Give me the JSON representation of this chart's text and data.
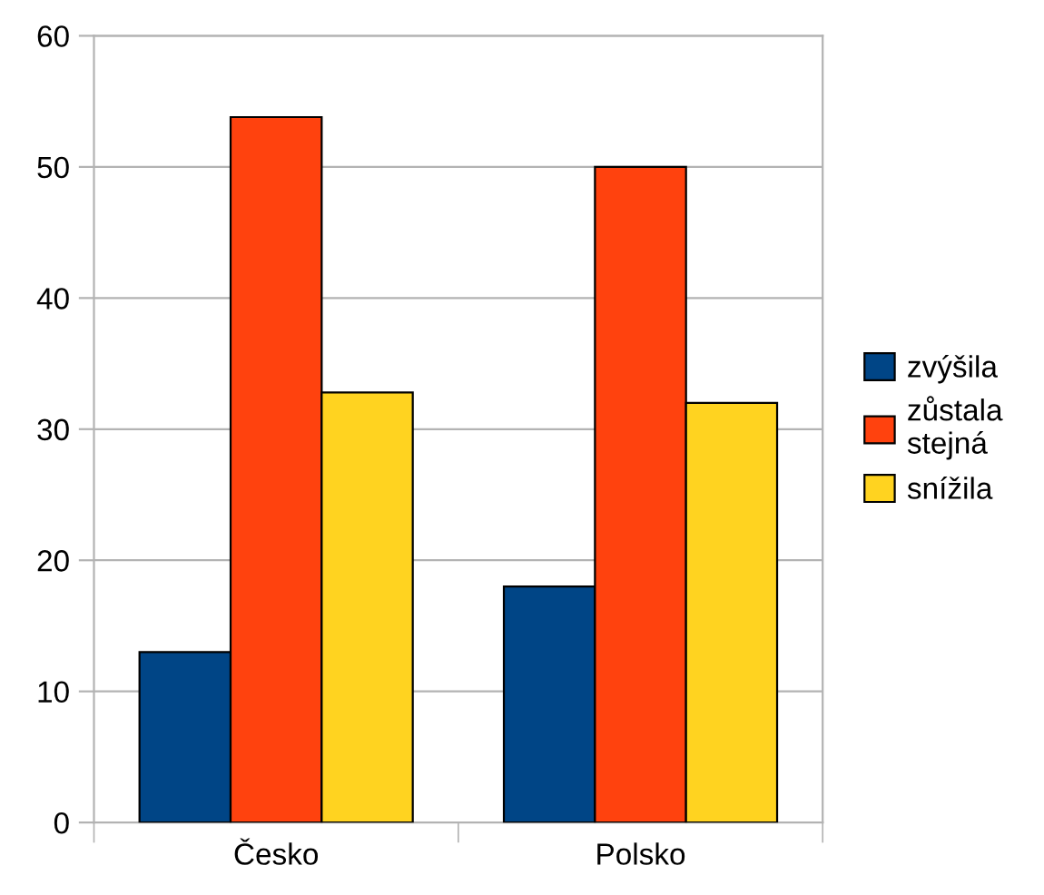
{
  "chart_data": {
    "type": "bar",
    "categories": [
      "Česko",
      "Polsko"
    ],
    "series": [
      {
        "name": "zvýšila",
        "color": "#004586",
        "values": [
          13,
          18
        ]
      },
      {
        "name": "zůstala\nstejná",
        "color": "#ff420e",
        "values": [
          53.8,
          50
        ]
      },
      {
        "name": "snížila",
        "color": "#ffd320",
        "values": [
          32.8,
          32
        ]
      }
    ],
    "ylim": [
      0,
      60
    ],
    "yticks": [
      0,
      10,
      20,
      30,
      40,
      50,
      60
    ],
    "grid": "y",
    "legend": "right"
  }
}
